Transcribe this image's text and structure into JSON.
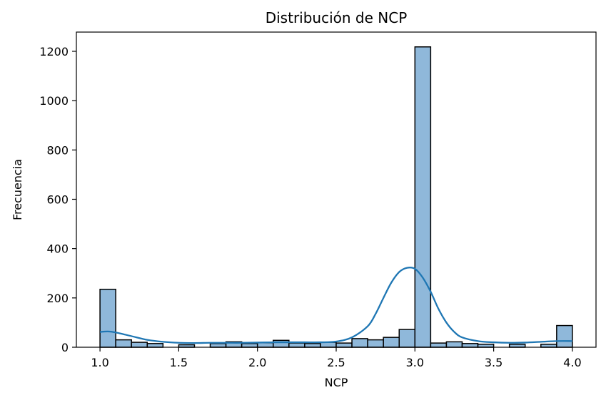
{
  "chart_data": {
    "type": "bar",
    "subtype": "histogram_with_kde",
    "title": "Distribución de NCP",
    "xlabel": "NCP",
    "ylabel": "Frecuencia",
    "xlim": [
      0.85,
      4.15
    ],
    "ylim": [
      0,
      1278
    ],
    "x_ticks": [
      1.0,
      1.5,
      2.0,
      2.5,
      3.0,
      3.5,
      4.0
    ],
    "x_tick_labels": [
      "1.0",
      "1.5",
      "2.0",
      "2.5",
      "3.0",
      "3.5",
      "4.0"
    ],
    "y_ticks": [
      0,
      200,
      400,
      600,
      800,
      1000,
      1200
    ],
    "y_tick_labels": [
      "0",
      "200",
      "400",
      "600",
      "800",
      "1000",
      "1200"
    ],
    "bin_edges": [
      1.0,
      1.1,
      1.2,
      1.3,
      1.4,
      1.5,
      1.6,
      1.7,
      1.8,
      1.9,
      2.0,
      2.1,
      2.2,
      2.3,
      2.4,
      2.5,
      2.6,
      2.7,
      2.8,
      2.9,
      3.0,
      3.1,
      3.2,
      3.3,
      3.4,
      3.5,
      3.6,
      3.7,
      3.8,
      3.9,
      4.0
    ],
    "values": [
      235,
      30,
      20,
      15,
      0,
      10,
      0,
      15,
      22,
      15,
      18,
      28,
      17,
      15,
      20,
      17,
      35,
      30,
      40,
      72,
      1218,
      17,
      22,
      15,
      12,
      0,
      12,
      0,
      12,
      88
    ],
    "kde": {
      "x": [
        1.0,
        1.05,
        1.1,
        1.2,
        1.3,
        1.4,
        1.5,
        1.6,
        1.7,
        1.8,
        1.9,
        2.0,
        2.1,
        2.2,
        2.3,
        2.4,
        2.5,
        2.6,
        2.7,
        2.75,
        2.8,
        2.85,
        2.9,
        2.95,
        3.0,
        3.05,
        3.1,
        3.15,
        3.2,
        3.25,
        3.3,
        3.4,
        3.5,
        3.6,
        3.7,
        3.8,
        3.9,
        4.0
      ],
      "y": [
        62,
        64,
        60,
        45,
        30,
        22,
        18,
        17,
        18,
        18,
        18,
        19,
        20,
        20,
        20,
        20,
        23,
        40,
        85,
        135,
        200,
        262,
        305,
        322,
        318,
        282,
        225,
        155,
        100,
        62,
        40,
        25,
        20,
        18,
        19,
        22,
        25,
        25
      ]
    },
    "bar_fill": "#8fb8da",
    "bar_stroke": "#000000",
    "kde_color": "#1f77b4",
    "grid": false,
    "legend": "none"
  }
}
